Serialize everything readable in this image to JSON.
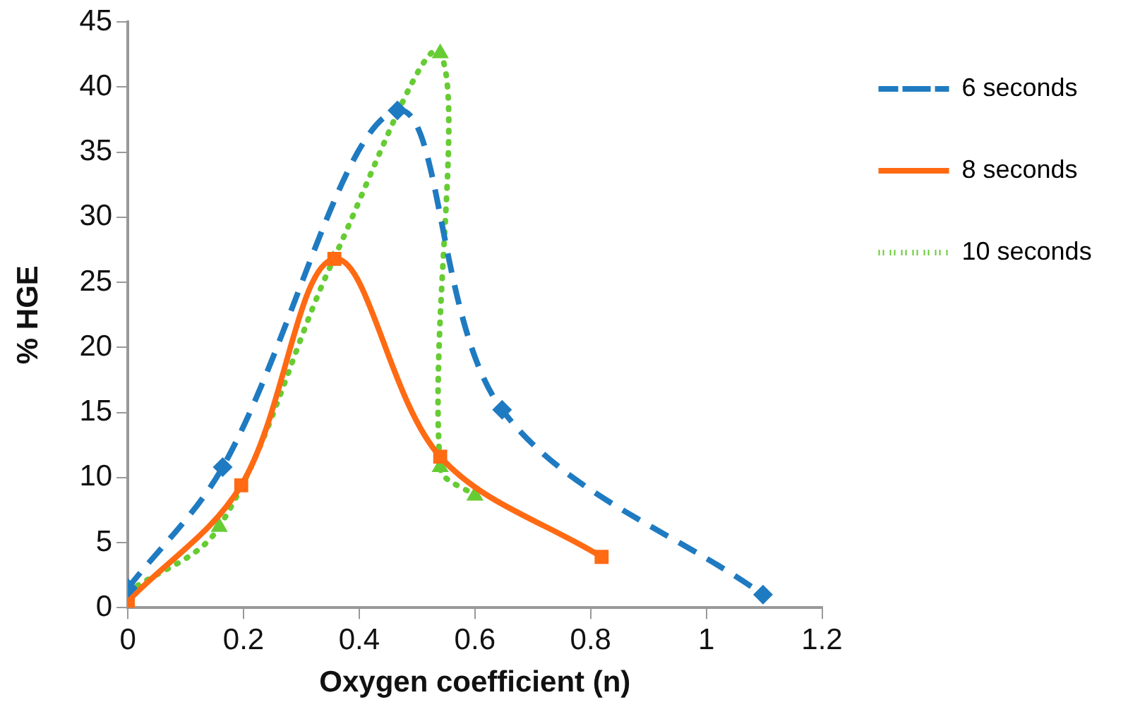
{
  "chart_data": {
    "type": "line",
    "xlabel": "Oxygen coefficient (n)",
    "ylabel": "% HGE",
    "xlim": [
      0,
      1.2
    ],
    "xticks": [
      0,
      0.2,
      0.4,
      0.6,
      0.8,
      1,
      1.2
    ],
    "ylim": [
      0,
      45
    ],
    "yticks": [
      0,
      5,
      10,
      15,
      20,
      25,
      30,
      35,
      40,
      45
    ],
    "grid": false,
    "legend": "right",
    "series": [
      {
        "name": "6 seconds",
        "color": "#1f7bc1",
        "marker": "diamond",
        "line_style": "dashed",
        "x": [
          0,
          0.164,
          0.466,
          0.647,
          1.098
        ],
        "values": [
          1.5,
          10.8,
          38.2,
          15.2,
          1
        ]
      },
      {
        "name": "8 seconds",
        "color": "#ff6a13",
        "marker": "square",
        "line_style": "solid",
        "x": [
          0,
          0.196,
          0.357,
          0.54,
          0.819
        ],
        "values": [
          0.5,
          9.4,
          26.8,
          11.6,
          3.9
        ]
      },
      {
        "name": "10 seconds",
        "color": "#66cc33",
        "marker": "triangle",
        "line_style": "dotted",
        "x": [
          0,
          0.158,
          0.355,
          0.54,
          0.54,
          0.6
        ],
        "values": [
          1.2,
          6.2,
          26.7,
          42.6,
          10.8,
          8.6
        ]
      }
    ]
  }
}
